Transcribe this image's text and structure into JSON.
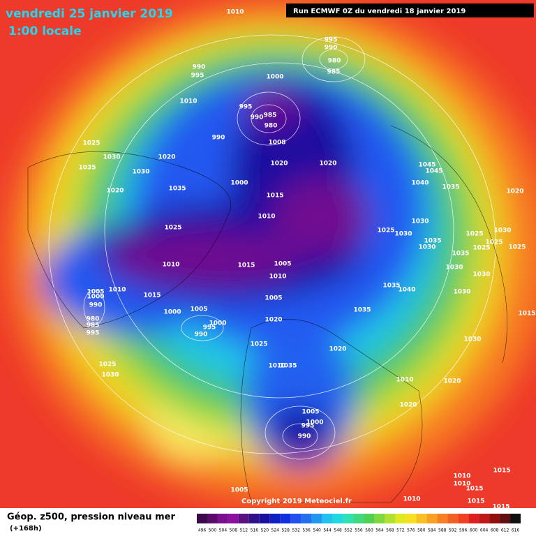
{
  "header": {
    "date": "vendredi 25 janvier 2019",
    "time": "1:00 locale",
    "run": "Run ECMWF 0Z du vendredi 18 janvier 2019"
  },
  "copyright": "Copyright 2019 Meteociel.fr",
  "legend": {
    "title": "Géop. z500, pression niveau mer",
    "lead": "(+168h)",
    "levels": [
      496,
      500,
      504,
      508,
      512,
      516,
      520,
      524,
      528,
      532,
      536,
      540,
      544,
      548,
      552,
      556,
      560,
      564,
      568,
      572,
      576,
      580,
      584,
      588,
      592,
      596,
      600,
      604,
      608,
      612,
      616
    ],
    "colors": [
      "#3a0a4a",
      "#5a0a6a",
      "#7a1090",
      "#8a10a0",
      "#5a1080",
      "#30108a",
      "#1a10a0",
      "#1020c0",
      "#1030e0",
      "#2050f0",
      "#2070f0",
      "#2098f0",
      "#20c0f0",
      "#20d8e0",
      "#30e0b0",
      "#40d880",
      "#50d050",
      "#80d840",
      "#b0e030",
      "#e0e820",
      "#f8e020",
      "#f8c020",
      "#f8a020",
      "#f88020",
      "#f06020",
      "#f04020",
      "#e02020",
      "#c01818",
      "#901010",
      "#601010",
      "#101010"
    ]
  },
  "isobar_labels": [
    "1010",
    "995",
    "990",
    "980",
    "985",
    "990",
    "995",
    "1000",
    "1010",
    "995",
    "985",
    "990",
    "980",
    "990",
    "1008",
    "1025",
    "1030",
    "1020",
    "1020",
    "1020",
    "1035",
    "1030",
    "1045",
    "1045",
    "1000",
    "1040",
    "1035",
    "1020",
    "1035",
    "1020",
    "1015",
    "1010",
    "1030",
    "1025",
    "1025",
    "1030",
    "1025",
    "1030",
    "1035",
    "1030",
    "1025",
    "1025",
    "1025",
    "1035",
    "1010",
    "1015",
    "1005",
    "1030",
    "1030",
    "1010",
    "1035",
    "1040",
    "1030",
    "1005",
    "1010",
    "1015",
    "1000",
    "990",
    "1005",
    "1035",
    "1000",
    "1005",
    "1015",
    "980",
    "1020",
    "1000",
    "985",
    "995",
    "990",
    "995",
    "1030",
    "1025",
    "1020",
    "1025",
    "1010",
    "1035",
    "1030",
    "1010",
    "1020",
    "1020",
    "1005",
    "1000",
    "995",
    "990",
    "1010",
    "1015",
    "1010",
    "1015",
    "1005",
    "1010",
    "1015",
    "1015"
  ]
}
